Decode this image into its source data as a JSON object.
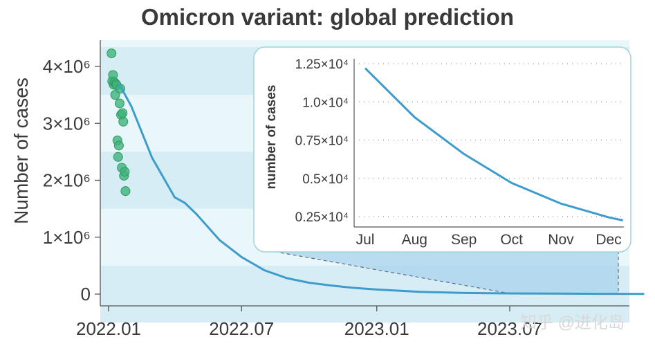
{
  "chart_data": {
    "type": "line",
    "title": "Omicron variant: global prediction",
    "ylabel": "Number of cases",
    "y_ticks": [
      "0",
      "1×10⁶",
      "2×10⁶",
      "3×10⁶",
      "4×10⁶"
    ],
    "y_tick_values": [
      0,
      1000000,
      2000000,
      3000000,
      4000000
    ],
    "x_ticks": [
      "2022.01",
      "2022.07",
      "2023.01",
      "2023.07"
    ],
    "x_tick_values": [
      "2022-01",
      "2022-07",
      "2023-01",
      "2023-07"
    ],
    "colors": {
      "line": "#3c9ccb",
      "observed": "#3fb37a",
      "band_light": "#e9f6fa",
      "band_dark": "#d6edf5"
    },
    "series": [
      {
        "kind": "observed-points",
        "x": [
          "2022-01-05",
          "2022-01-06",
          "2022-01-07",
          "2022-01-08",
          "2022-01-09",
          "2022-01-10",
          "2022-01-11",
          "2022-01-12",
          "2022-01-13",
          "2022-01-14",
          "2022-01-15",
          "2022-01-16",
          "2022-01-17",
          "2022-01-18",
          "2022-01-19",
          "2022-01-20",
          "2022-01-21",
          "2022-01-22",
          "2022-01-23",
          "2022-01-24"
        ],
        "values": [
          4230000,
          3740000,
          3850000,
          3680000,
          3720000,
          3500000,
          3690000,
          3670000,
          2700000,
          2410000,
          2610000,
          3350000,
          3610000,
          3150000,
          2220000,
          3180000,
          3030000,
          2080000,
          2150000,
          1810000
        ]
      },
      {
        "kind": "prediction-line",
        "x": [
          "2022-01-15",
          "2022-02-01",
          "2022-03-01",
          "2022-04-01",
          "2022-04-15",
          "2022-05-01",
          "2022-06-01",
          "2022-07-01",
          "2022-08-01",
          "2022-09-01",
          "2022-10-01",
          "2022-11-01",
          "2022-12-01",
          "2023-01-01",
          "2023-03-01",
          "2023-05-01",
          "2023-07-01",
          "2023-09-01",
          "2023-11-01",
          "2023-12-31"
        ],
        "values": [
          3700000,
          3300000,
          2400000,
          1700000,
          1600000,
          1400000,
          950000,
          650000,
          420000,
          280000,
          200000,
          150000,
          110000,
          80000,
          40000,
          20000,
          12000,
          8000,
          5000,
          2500
        ]
      }
    ],
    "inset": {
      "ylabel": "number of cases",
      "y_ticks": [
        "0.25×10⁴",
        "0.5×10⁴",
        "0.75×10⁴",
        "1.0×10⁴",
        "1.25×10⁴"
      ],
      "y_tick_values": [
        2500,
        5000,
        7500,
        10000,
        12500
      ],
      "x_ticks": [
        "Jul",
        "Aug",
        "Sep",
        "Oct",
        "Nov",
        "Dec"
      ],
      "x": [
        "2023-07-01",
        "2023-08-01",
        "2023-09-01",
        "2023-10-01",
        "2023-11-01",
        "2023-12-01",
        "2023-12-10"
      ],
      "values": [
        12200,
        9000,
        6600,
        4700,
        3350,
        2450,
        2250
      ]
    }
  },
  "watermark": "知乎 @进化岛"
}
